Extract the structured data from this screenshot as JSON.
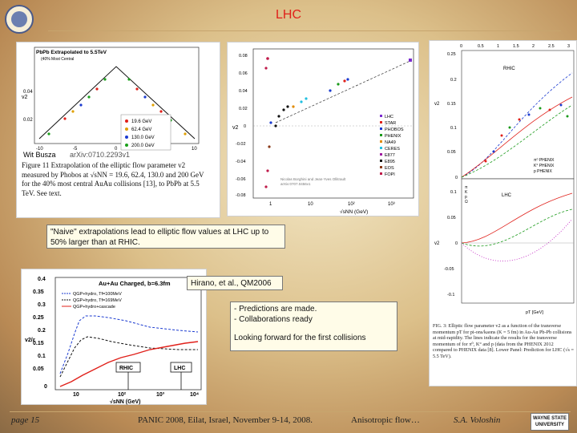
{
  "title": "LHC",
  "panel1": {
    "inner_title": "PbPb Extrapolated to 5.5TeV",
    "inner_subtitle": "(40% Most Central",
    "legend": [
      "19.6 GeV",
      "62.4 GeV",
      "130.0 GeV",
      "200.0 GeV"
    ],
    "legend_colors": [
      "#e0201a",
      "#e0a000",
      "#1a3ad0",
      "#1aa01a"
    ],
    "y_ticks": [
      "0.04",
      "0.02"
    ],
    "x_ticks": [
      "-10",
      "-5",
      "0",
      "5",
      "10"
    ],
    "ylabel": "v2",
    "author": "Wit Busza",
    "arxiv": "arXiv:0710.2293v1",
    "caption": "Figure 11 Extrapolation of the elliptic flow parameter v2 measured by Phobos at √sNN = 19.6, 62.4, 130.0 and 200 GeV for the 40% most central AuAu collisions [13], to PbPb at 5.5 TeV. See text."
  },
  "panel2": {
    "y_ticks": [
      "0.08",
      "0.06",
      "0.04",
      "0.02",
      "0",
      "-0.02",
      "-0.04",
      "-0.06",
      "-0.08"
    ],
    "x_ticks": [
      "1",
      "10",
      "10²",
      "10³"
    ],
    "xlabel": "√sNN (GeV)",
    "ylabel": "v2",
    "legend": [
      "LHC",
      "STAR",
      "PHOBOS",
      "PHENIX",
      "NA49",
      "CERES",
      "E877",
      "E895",
      "EOS",
      "FOPI"
    ],
    "legend_colors": [
      "#7a2ad0",
      "#e0201a",
      "#1a3ad0",
      "#1a9a1a",
      "#e08a00",
      "#20c0e0",
      "#a01aa0",
      "#111111",
      "#8a3a1a",
      "#c01a4a"
    ],
    "watermark_line1": "Nicolas Borghini and Jean-Yves Ollitrault",
    "watermark_line2": "arXiv:0707.0456v1"
  },
  "panel3": {
    "top_x_ticks": [
      "0",
      "0.5",
      "1",
      "1.5",
      "2",
      "2.5",
      "3"
    ],
    "top_y_ticks": [
      "0.25",
      "0.2",
      "0.15",
      "0.1",
      "0.05",
      "0"
    ],
    "top_label": "RHIC",
    "top_legend": [
      "π⁰ PHENIX",
      "K° PHENIX",
      "p PHENIX"
    ],
    "bottom_y_ticks": [
      "0.1",
      "0.05",
      "0",
      "-0.05",
      "-0.1"
    ],
    "bottom_label": "LHC",
    "bottom_legend": [
      "π",
      "K",
      "p",
      "Ω"
    ],
    "xlabel": "pT [GeV]",
    "ylabel": "v2",
    "caption": "FIG. 3: Elliptic flow parameter v2 as a function of the transverse momentum pT for pi-ons/kaons (K = 5 fm) in Au-Au Pb-Pb collisions at mid-rapidity. The lines indicate the results for the transverse momentum of for π⁰, K° and p (data from the PHENIX 2012 compared to PHENIX data [8]. Lower Panel: Prediction for LHC (√s = 5.5 TeV)."
  },
  "panel4": {
    "title": "Au+Au Charged, b=6.3fm",
    "legend": [
      "QGP+hydro, Tf=100MeV",
      "QGP+hydro, Tf=169MeV",
      "QGP+hydro+cascade"
    ],
    "y_ticks": [
      "0.4",
      "0.35",
      "0.3",
      "0.25",
      "0.2",
      "0.15",
      "0.1",
      "0.05",
      "0"
    ],
    "x_ticks": [
      "10",
      "10²",
      "10³",
      "10⁴"
    ],
    "xlabel": "√sNN (GeV)",
    "ylabel": "v2/ε",
    "rhic_label": "RHIC",
    "lhc_label": "LHC"
  },
  "notes": {
    "naive": "\"Naive\" extrapolations lead to elliptic flow values at LHC up to 50% larger than at RHIC.",
    "hirano": "Hirano, et al., QM2006",
    "predictions_1": "- Predictions are made.",
    "predictions_2": "- Collaborations ready",
    "forward": "Looking forward for the first collisions"
  },
  "footer": {
    "page": "page 15",
    "conference": "PANIC 2008, Eilat, Israel, November 9-14, 2008.",
    "topic": "Anisotropic flow…",
    "author": "S.A. Voloshin",
    "logo_line1": "WAYNE STATE",
    "logo_line2": "UNIVERSITY"
  }
}
